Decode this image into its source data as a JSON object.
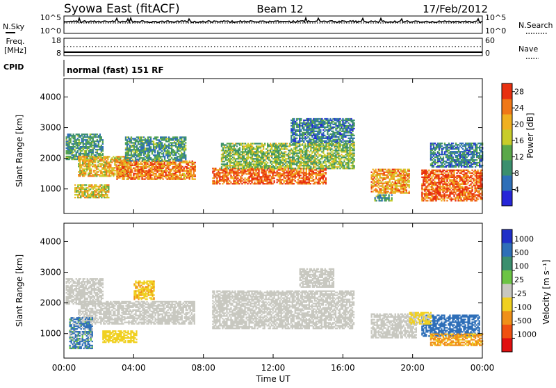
{
  "header": {
    "station": "Syowa East (fitACF)",
    "beam": "Beam 12",
    "date": "17/Feb/2012"
  },
  "status_panels": {
    "nsky": {
      "label": "N.Sky",
      "ticks": [
        "10^5",
        "10^0"
      ]
    },
    "nsearch": {
      "label": "N.Search",
      "ticks": [
        "10^5",
        "10^0"
      ]
    },
    "freq": {
      "label_line1": "Freq.",
      "label_line2": "[MHz]",
      "ticks": [
        "18",
        "8"
      ]
    },
    "nave": {
      "label": "Nave",
      "ticks": [
        "60",
        "0"
      ]
    },
    "cpid": {
      "label": "CPID",
      "value": "normal (fast) 151 RF"
    }
  },
  "chart_data": [
    {
      "type": "heatmap",
      "title": "",
      "quantity": "Power",
      "xlabel": "",
      "ylabel": "Slant Range [km]",
      "x_ticks": [
        "00:00",
        "04:00",
        "08:00",
        "12:00",
        "16:00",
        "20:00",
        "00:00"
      ],
      "xlim_hours": [
        0,
        24
      ],
      "ylim": [
        200,
        4600
      ],
      "y_ticks": [
        1000,
        2000,
        3000,
        4000
      ],
      "colorbar": {
        "label": "Power [dB]",
        "ticks": [
          4,
          8,
          12,
          16,
          20,
          24,
          28
        ],
        "range": [
          0,
          30
        ],
        "colors": [
          "#2626d8",
          "#2e6fb8",
          "#3b8f6e",
          "#5aa84a",
          "#c8cc2a",
          "#f0b020",
          "#f07818",
          "#e83010"
        ]
      },
      "echo_regions": [
        {
          "t0": 0.1,
          "t1": 2.2,
          "r0": 1950,
          "r1": 2800,
          "power": 10
        },
        {
          "t0": 0.8,
          "t1": 3.8,
          "r0": 1400,
          "r1": 2050,
          "power": 20
        },
        {
          "t0": 3.0,
          "t1": 7.5,
          "r0": 1300,
          "r1": 1900,
          "power": 24
        },
        {
          "t0": 3.5,
          "t1": 7.0,
          "r0": 1900,
          "r1": 2700,
          "power": 10
        },
        {
          "t0": 0.6,
          "t1": 2.6,
          "r0": 700,
          "r1": 1150,
          "power": 18
        },
        {
          "t0": 8.5,
          "t1": 15.0,
          "r0": 1150,
          "r1": 1650,
          "power": 26
        },
        {
          "t0": 9.0,
          "t1": 16.6,
          "r0": 1650,
          "r1": 2500,
          "power": 14
        },
        {
          "t0": 13.0,
          "t1": 16.6,
          "r0": 2500,
          "r1": 3300,
          "power": 8
        },
        {
          "t0": 17.6,
          "t1": 19.8,
          "r0": 850,
          "r1": 1650,
          "power": 22
        },
        {
          "t0": 17.8,
          "t1": 18.8,
          "r0": 600,
          "r1": 800,
          "power": 10
        },
        {
          "t0": 20.5,
          "t1": 24.0,
          "r0": 600,
          "r1": 1600,
          "power": 26
        },
        {
          "t0": 21.0,
          "t1": 24.0,
          "r0": 1700,
          "r1": 2500,
          "power": 8
        }
      ]
    },
    {
      "type": "heatmap",
      "title": "",
      "quantity": "Velocity",
      "xlabel": "Time UT",
      "ylabel": "Slant Range [km]",
      "x_ticks": [
        "00:00",
        "04:00",
        "08:00",
        "12:00",
        "16:00",
        "20:00",
        "00:00"
      ],
      "xlim_hours": [
        0,
        24
      ],
      "ylim": [
        200,
        4600
      ],
      "y_ticks": [
        1000,
        2000,
        3000,
        4000
      ],
      "colorbar": {
        "label": "Velocity [m s⁻¹]",
        "ticks": [
          "1000",
          "500",
          "100",
          "25",
          "-25",
          "-100",
          "-500",
          "-1000"
        ],
        "colors": [
          "#2030c8",
          "#2e6fb8",
          "#3b8f6e",
          "#6cc444",
          "#c8c8c0",
          "#f0d020",
          "#f09018",
          "#f05010",
          "#e01010"
        ]
      },
      "echo_regions": [
        {
          "t0": 0.1,
          "t1": 2.2,
          "r0": 1950,
          "r1": 2800,
          "velocity": 0
        },
        {
          "t0": 0.8,
          "t1": 7.5,
          "r0": 1300,
          "r1": 2050,
          "velocity": 0
        },
        {
          "t0": 2.2,
          "t1": 4.2,
          "r0": 700,
          "r1": 1100,
          "velocity": -300
        },
        {
          "t0": 4.0,
          "t1": 5.2,
          "r0": 2100,
          "r1": 2700,
          "velocity": -400
        },
        {
          "t0": 0.3,
          "t1": 1.6,
          "r0": 500,
          "r1": 1500,
          "velocity": 150
        },
        {
          "t0": 8.5,
          "t1": 16.6,
          "r0": 1150,
          "r1": 2400,
          "velocity": 0
        },
        {
          "t0": 13.5,
          "t1": 15.5,
          "r0": 2500,
          "r1": 3100,
          "velocity": 0
        },
        {
          "t0": 17.6,
          "t1": 20.2,
          "r0": 850,
          "r1": 1650,
          "velocity": 0
        },
        {
          "t0": 20.5,
          "t1": 23.8,
          "r0": 900,
          "r1": 1600,
          "velocity": 300
        },
        {
          "t0": 21.0,
          "t1": 24.0,
          "r0": 600,
          "r1": 1000,
          "velocity": -600
        },
        {
          "t0": 19.8,
          "t1": 21.0,
          "r0": 1300,
          "r1": 1700,
          "velocity": -200
        }
      ]
    }
  ]
}
